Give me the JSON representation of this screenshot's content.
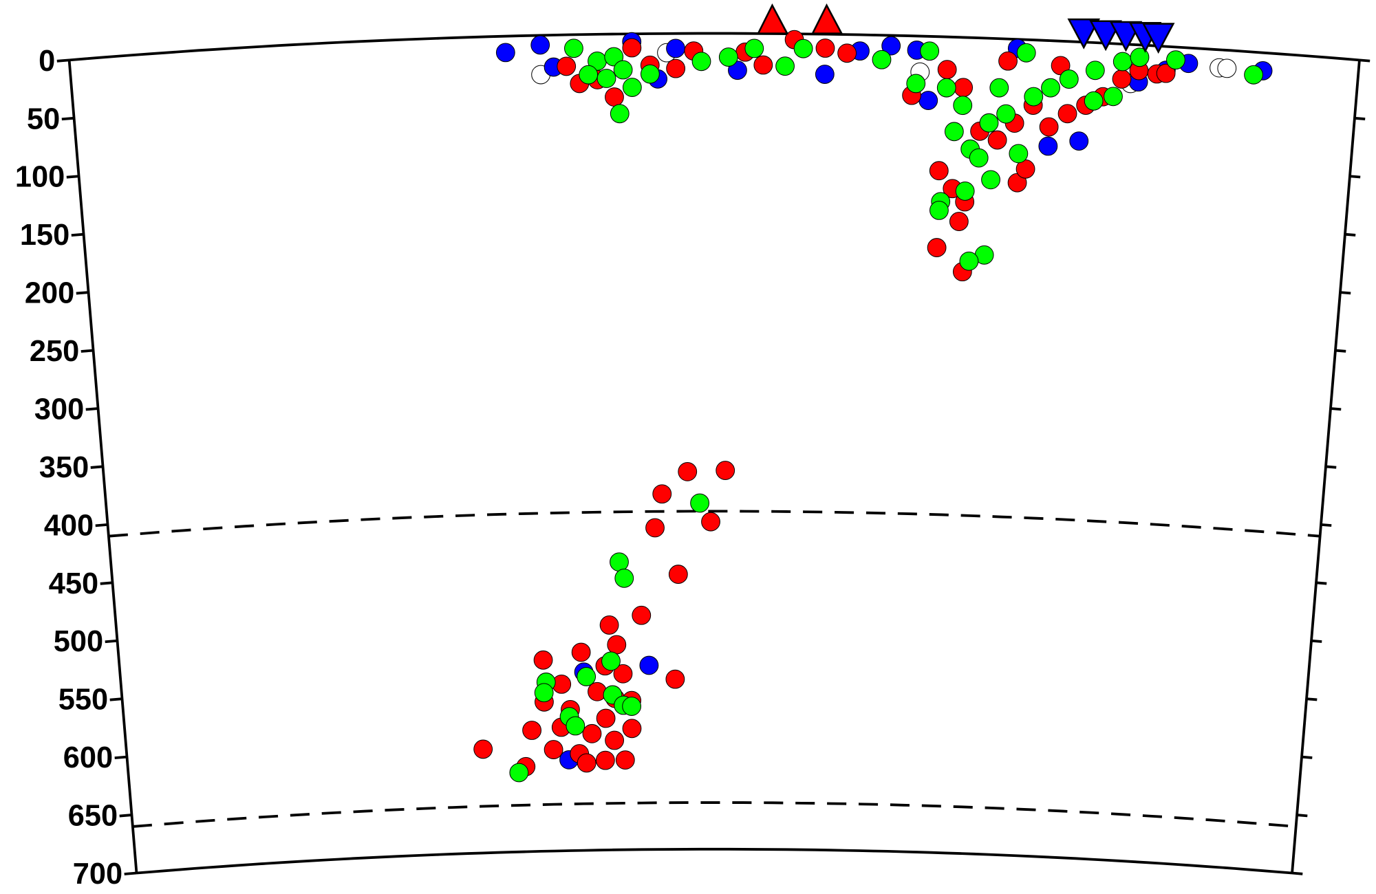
{
  "chart_data": {
    "type": "scatter",
    "ylim": [
      0,
      700
    ],
    "yticks": [
      0,
      50,
      100,
      150,
      200,
      250,
      300,
      350,
      400,
      450,
      500,
      550,
      600,
      650,
      700
    ],
    "xlim": [
      0,
      100
    ],
    "discontinuities": [
      410,
      660
    ],
    "series": [
      {
        "color": "#ffffff",
        "x": [
          36.5,
          66.0,
          89.2,
          89.8,
          82.4,
          46.3
        ],
        "values": [
          33.7,
          30.8,
          15.5,
          15.5,
          33.4,
          16.4
        ]
      },
      {
        "color": "#0000ff",
        "x": [
          33.8,
          36.5,
          37.5,
          43.6,
          47.0,
          51.8,
          58.6,
          61.3,
          63.7,
          65.7,
          66.7,
          73.5,
          76.2,
          78.6,
          83.0,
          86.8,
          92.6,
          85.1,
          45.6,
          44.5,
          37.6,
          39.0
        ],
        "values": [
          14,
          8.3,
          27.5,
          6.8,
          12.8,
          31.6,
          34.4,
          13.9,
          8.9,
          12.1,
          55,
          7.8,
          90.5,
          85,
          31.7,
          13.4,
          15.5,
          20.4,
          38.9,
          542,
          622,
          547
        ]
      },
      {
        "color": "#ff0000",
        "x": [
          38.5,
          39.5,
          40.9,
          42.2,
          43.6,
          45.0,
          47.0,
          48.4,
          52.4,
          53.8,
          56.2,
          58.6,
          60.3,
          65.4,
          68.1,
          69.4,
          70.8,
          72.2,
          73.5,
          74.9,
          76.2,
          77.6,
          79.0,
          80.3,
          81.7,
          83.0,
          84.4,
          67.7,
          68.8,
          69.8,
          69.4,
          73.9,
          74.5,
          67.7,
          69.8,
          72.8,
          76.9,
          85.1,
          45.7,
          47.8,
          50.9,
          45.1,
          49.7,
          47.0,
          43.9,
          41.2,
          41.8,
          35.6,
          38.8,
          40.8,
          42.3,
          37.1,
          40.1,
          43.0,
          46.7,
          35.6,
          37.8,
          40.8,
          43.0,
          34.5,
          36.3,
          38.5,
          40.7,
          42.4,
          39.1,
          30.3,
          33.9,
          41.5,
          37.0,
          39.6,
          41.6
        ],
        "values": [
          27,
          42,
          39,
          54,
          12,
          27,
          30,
          15,
          16,
          27,
          5,
          12,
          16,
          51,
          28,
          43,
          80,
          87,
          72,
          56,
          74,
          62,
          54,
          46,
          30,
          22,
          24,
          115,
          130,
          141,
          158,
          123,
          111,
          181,
          201,
          19,
          21,
          23,
          395,
          376,
          375,
          424,
          419,
          464,
          499,
          507,
          524,
          536,
          530,
          542,
          549,
          557,
          564,
          572,
          554,
          572,
          579,
          587,
          596,
          596,
          613,
          617,
          623,
          623,
          625,
          611,
          627,
          606,
          594,
          600,
          570
        ]
      },
      {
        "color": "#00ff00",
        "x": [
          39.1,
          40.9,
          42.2,
          42.9,
          41.6,
          43.6,
          42.6,
          45.0,
          40.2,
          49.0,
          51.1,
          53.1,
          55.5,
          56.9,
          63.0,
          66.7,
          65.7,
          68.1,
          69.4,
          68.8,
          70.1,
          71.5,
          72.8,
          74.9,
          76.2,
          77.6,
          79.6,
          81.7,
          83.0,
          85.8,
          74.2,
          72.2,
          70.8,
          67.9,
          67.8,
          69.8,
          71.8,
          71.5,
          70.3,
          91.9,
          73.9,
          79.6,
          81.1,
          48.8,
          42.1,
          42.5,
          41.3,
          39.2,
          35.8,
          35.6,
          41.4,
          42.3,
          43.0,
          37.7,
          38.2,
          33.3
        ],
        "values": [
          11.7,
          23,
          19.5,
          30.8,
          38,
          45.9,
          68.4,
          34.6,
          34.6,
          24,
          20.3,
          12.8,
          27.8,
          12.6,
          21,
          12.6,
          40.7,
          43.7,
          58.3,
          81,
          95.6,
          72.6,
          64.4,
          48.6,
          40.4,
          32.3,
          23.7,
          15,
          10.5,
          11,
          11.3,
          42.2,
          102.9,
          141.5,
          149,
          131.8,
          121.3,
          186,
          191.7,
          19.5,
          98,
          50,
          45.3,
          403,
          453,
          467,
          538,
          551,
          555,
          564,
          567,
          576,
          577,
          585,
          593,
          632
        ]
      }
    ]
  }
}
